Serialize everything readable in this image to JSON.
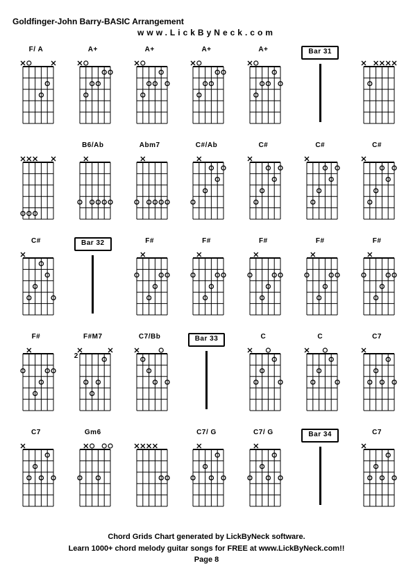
{
  "title": "Goldfinger-John Barry-BASIC Arrangement",
  "subtitle": "www.LickByNeck.com",
  "footer_line1": "Chord Grids Chart generated by LickByNeck software.",
  "footer_line2": "Learn 1000+ chord melody guitar songs for FREE at www.LickByNeck.com!!",
  "footer_line3": "Page 8",
  "colors": {
    "fg": "#000000",
    "bg": "#ffffff"
  },
  "diagram": {
    "strings": 6,
    "frets": 5,
    "width": 58,
    "height": 100,
    "marker_open": "o",
    "marker_mute": "x",
    "dot_radius": 3,
    "line_weight": 1
  },
  "cells": [
    {
      "label": "F/ A",
      "top": [
        "x",
        "o",
        "",
        "",
        "",
        "x"
      ],
      "dots": [
        [
          3,
          4
        ],
        [
          2,
          5
        ]
      ]
    },
    {
      "label": "A+",
      "top": [
        "x",
        "o",
        "",
        "",
        "",
        ""
      ],
      "dots": [
        [
          3,
          2
        ],
        [
          2,
          3
        ],
        [
          2,
          4
        ],
        [
          1,
          5
        ],
        [
          1,
          6
        ]
      ]
    },
    {
      "label": "A+",
      "top": [
        "x",
        "o",
        "",
        "",
        "",
        ""
      ],
      "dots": [
        [
          3,
          2
        ],
        [
          2,
          3
        ],
        [
          2,
          4
        ],
        [
          1,
          5
        ],
        [
          2,
          6
        ]
      ]
    },
    {
      "label": "A+",
      "top": [
        "x",
        "o",
        "",
        "",
        "",
        ""
      ],
      "dots": [
        [
          3,
          2
        ],
        [
          2,
          3
        ],
        [
          2,
          4
        ],
        [
          1,
          5
        ],
        [
          1,
          6
        ]
      ]
    },
    {
      "label": "A+",
      "top": [
        "x",
        "o",
        "",
        "",
        "",
        ""
      ],
      "dots": [
        [
          3,
          2
        ],
        [
          2,
          3
        ],
        [
          2,
          4
        ],
        [
          1,
          5
        ],
        [
          2,
          6
        ]
      ]
    },
    {
      "label": "Bar 31",
      "bar": true
    },
    {
      "label": "",
      "top": [
        "x",
        "",
        "x",
        "x",
        "x",
        "x"
      ],
      "dots": [
        [
          2,
          2
        ]
      ]
    },
    {
      "label": "",
      "top": [
        "x",
        "x",
        "x",
        "",
        "",
        "x"
      ],
      "dots": [
        [
          5,
          1
        ],
        [
          5,
          2
        ],
        [
          5,
          3
        ]
      ]
    },
    {
      "label": "B6/Ab",
      "top": [
        "",
        "x",
        "",
        "",
        "",
        ""
      ],
      "dots": [
        [
          4,
          1
        ],
        [
          4,
          3
        ],
        [
          4,
          4
        ],
        [
          4,
          5
        ],
        [
          4,
          6
        ]
      ]
    },
    {
      "label": "Abm7",
      "top": [
        "",
        "x",
        "",
        "",
        "",
        ""
      ],
      "dots": [
        [
          4,
          1
        ],
        [
          4,
          3
        ],
        [
          4,
          4
        ],
        [
          4,
          5
        ],
        [
          4,
          6
        ]
      ]
    },
    {
      "label": "C#/Ab",
      "top": [
        "",
        "x",
        "",
        "",
        "",
        ""
      ],
      "dots": [
        [
          4,
          1
        ],
        [
          3,
          3
        ],
        [
          1,
          4
        ],
        [
          2,
          5
        ],
        [
          1,
          6
        ]
      ]
    },
    {
      "label": "C#",
      "top": [
        "x",
        "",
        "",
        "",
        "",
        ""
      ],
      "dots": [
        [
          4,
          2
        ],
        [
          3,
          3
        ],
        [
          1,
          4
        ],
        [
          2,
          5
        ],
        [
          1,
          6
        ]
      ]
    },
    {
      "label": "C#",
      "top": [
        "x",
        "",
        "",
        "",
        "",
        ""
      ],
      "dots": [
        [
          4,
          2
        ],
        [
          3,
          3
        ],
        [
          1,
          4
        ],
        [
          2,
          5
        ],
        [
          1,
          6
        ]
      ]
    },
    {
      "label": "C#",
      "top": [
        "x",
        "",
        "",
        "",
        "",
        ""
      ],
      "dots": [
        [
          4,
          2
        ],
        [
          3,
          3
        ],
        [
          1,
          4
        ],
        [
          2,
          5
        ],
        [
          1,
          6
        ]
      ]
    },
    {
      "label": "C#",
      "top": [
        "x",
        "",
        "",
        "",
        "",
        ""
      ],
      "dots": [
        [
          4,
          2
        ],
        [
          3,
          3
        ],
        [
          1,
          4
        ],
        [
          2,
          5
        ],
        [
          4,
          6
        ]
      ]
    },
    {
      "label": "Bar 32",
      "bar": true
    },
    {
      "label": "F#",
      "top": [
        "",
        "x",
        "",
        "",
        "",
        ""
      ],
      "dots": [
        [
          2,
          1
        ],
        [
          4,
          3
        ],
        [
          3,
          4
        ],
        [
          2,
          5
        ],
        [
          2,
          6
        ]
      ]
    },
    {
      "label": "F#",
      "top": [
        "",
        "x",
        "",
        "",
        "",
        ""
      ],
      "dots": [
        [
          2,
          1
        ],
        [
          4,
          3
        ],
        [
          3,
          4
        ],
        [
          2,
          5
        ],
        [
          2,
          6
        ]
      ]
    },
    {
      "label": "F#",
      "top": [
        "",
        "x",
        "",
        "",
        "",
        ""
      ],
      "dots": [
        [
          2,
          1
        ],
        [
          4,
          3
        ],
        [
          3,
          4
        ],
        [
          2,
          5
        ],
        [
          2,
          6
        ]
      ]
    },
    {
      "label": "F#",
      "top": [
        "",
        "x",
        "",
        "",
        "",
        ""
      ],
      "dots": [
        [
          2,
          1
        ],
        [
          4,
          3
        ],
        [
          3,
          4
        ],
        [
          2,
          5
        ],
        [
          2,
          6
        ]
      ]
    },
    {
      "label": "F#",
      "top": [
        "",
        "x",
        "",
        "",
        "",
        ""
      ],
      "dots": [
        [
          2,
          1
        ],
        [
          4,
          3
        ],
        [
          3,
          4
        ],
        [
          2,
          5
        ],
        [
          2,
          6
        ]
      ]
    },
    {
      "label": "F#",
      "top": [
        "",
        "x",
        "",
        "",
        "",
        ""
      ],
      "dots": [
        [
          2,
          1
        ],
        [
          4,
          3
        ],
        [
          3,
          4
        ],
        [
          2,
          5
        ],
        [
          2,
          6
        ]
      ]
    },
    {
      "label": "F#M7",
      "fretpos": "2",
      "top": [
        "x",
        "",
        "",
        "",
        "",
        "x"
      ],
      "dots": [
        [
          3,
          2
        ],
        [
          4,
          3
        ],
        [
          3,
          4
        ],
        [
          1,
          5
        ]
      ]
    },
    {
      "label": "C7/Bb",
      "top": [
        "x",
        "",
        "",
        "",
        "o",
        ""
      ],
      "dots": [
        [
          1,
          2
        ],
        [
          2,
          3
        ],
        [
          3,
          4
        ],
        [
          3,
          6
        ]
      ]
    },
    {
      "label": "Bar 33",
      "bar": true
    },
    {
      "label": "C",
      "top": [
        "x",
        "",
        "",
        "o",
        "",
        ""
      ],
      "dots": [
        [
          3,
          2
        ],
        [
          2,
          3
        ],
        [
          1,
          5
        ],
        [
          3,
          6
        ]
      ]
    },
    {
      "label": "C",
      "top": [
        "x",
        "",
        "",
        "o",
        "",
        ""
      ],
      "dots": [
        [
          3,
          2
        ],
        [
          2,
          3
        ],
        [
          1,
          5
        ],
        [
          3,
          6
        ]
      ]
    },
    {
      "label": "C7",
      "top": [
        "x",
        "",
        "",
        "",
        "",
        ""
      ],
      "dots": [
        [
          3,
          2
        ],
        [
          2,
          3
        ],
        [
          3,
          4
        ],
        [
          1,
          5
        ],
        [
          3,
          6
        ]
      ]
    },
    {
      "label": "C7",
      "top": [
        "x",
        "",
        "",
        "",
        "",
        ""
      ],
      "dots": [
        [
          3,
          2
        ],
        [
          2,
          3
        ],
        [
          3,
          4
        ],
        [
          1,
          5
        ],
        [
          3,
          6
        ]
      ]
    },
    {
      "label": "Gm6",
      "top": [
        "",
        "x",
        "o",
        "",
        "o",
        "o"
      ],
      "dots": [
        [
          3,
          1
        ],
        [
          3,
          4
        ]
      ]
    },
    {
      "label": "",
      "top": [
        "x",
        "x",
        "x",
        "x",
        "",
        ""
      ],
      "dots": [
        [
          3,
          5
        ],
        [
          3,
          6
        ]
      ]
    },
    {
      "label": "C7/ G",
      "top": [
        "",
        "x",
        "",
        "",
        "",
        ""
      ],
      "dots": [
        [
          3,
          1
        ],
        [
          2,
          3
        ],
        [
          3,
          4
        ],
        [
          1,
          5
        ],
        [
          3,
          6
        ]
      ]
    },
    {
      "label": "C7/ G",
      "top": [
        "",
        "x",
        "",
        "",
        "",
        ""
      ],
      "dots": [
        [
          3,
          1
        ],
        [
          2,
          3
        ],
        [
          3,
          4
        ],
        [
          1,
          5
        ],
        [
          3,
          6
        ]
      ]
    },
    {
      "label": "Bar 34",
      "bar": true
    },
    {
      "label": "C7",
      "top": [
        "x",
        "",
        "",
        "",
        "",
        ""
      ],
      "dots": [
        [
          3,
          2
        ],
        [
          2,
          3
        ],
        [
          3,
          4
        ],
        [
          1,
          5
        ],
        [
          3,
          6
        ]
      ]
    }
  ]
}
